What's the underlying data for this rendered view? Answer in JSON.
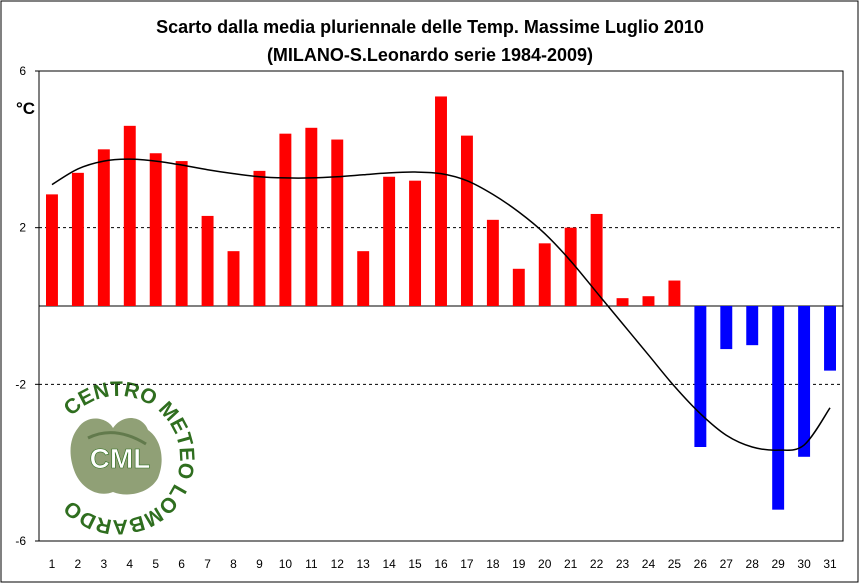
{
  "chart_data": {
    "type": "bar",
    "title": "Scarto dalla media pluriennale delle Temp. Massime Luglio 2010",
    "subtitle": "(MILANO-S.Leonardo serie 1984-2009)",
    "ylabel": "°C",
    "xlabel": "",
    "ylim": [
      -6,
      6
    ],
    "yticks": [
      6,
      2,
      -2,
      -6
    ],
    "grid_dashed_at": [
      2,
      -2
    ],
    "categories": [
      "1",
      "2",
      "3",
      "4",
      "5",
      "6",
      "7",
      "8",
      "9",
      "10",
      "11",
      "12",
      "13",
      "14",
      "15",
      "16",
      "17",
      "18",
      "19",
      "20",
      "21",
      "22",
      "23",
      "24",
      "25",
      "26",
      "27",
      "28",
      "29",
      "30",
      "31"
    ],
    "values": [
      2.85,
      3.4,
      4.0,
      4.6,
      3.9,
      3.7,
      2.3,
      1.4,
      3.45,
      4.4,
      4.55,
      4.25,
      1.4,
      3.3,
      3.2,
      5.35,
      4.35,
      2.2,
      0.95,
      1.6,
      2.0,
      2.35,
      0.2,
      0.25,
      0.65,
      -3.6,
      -1.1,
      -1.0,
      -5.2,
      -3.85,
      -1.65
    ],
    "positive_color": "#ff0000",
    "negative_color": "#0000ff",
    "trend_line": {
      "type": "line",
      "color": "#000000",
      "values": [
        3.1,
        3.5,
        3.7,
        3.75,
        3.7,
        3.6,
        3.48,
        3.38,
        3.3,
        3.27,
        3.27,
        3.3,
        3.35,
        3.4,
        3.42,
        3.38,
        3.2,
        2.85,
        2.4,
        1.85,
        1.15,
        0.35,
        -0.45,
        -1.25,
        -2.05,
        -2.75,
        -3.3,
        -3.6,
        -3.68,
        -3.55,
        -2.6
      ]
    }
  },
  "logo": {
    "ring_text": "CENTRO METEO LOMBARDO",
    "center_text": "CML",
    "color": "#2f6e1f"
  }
}
